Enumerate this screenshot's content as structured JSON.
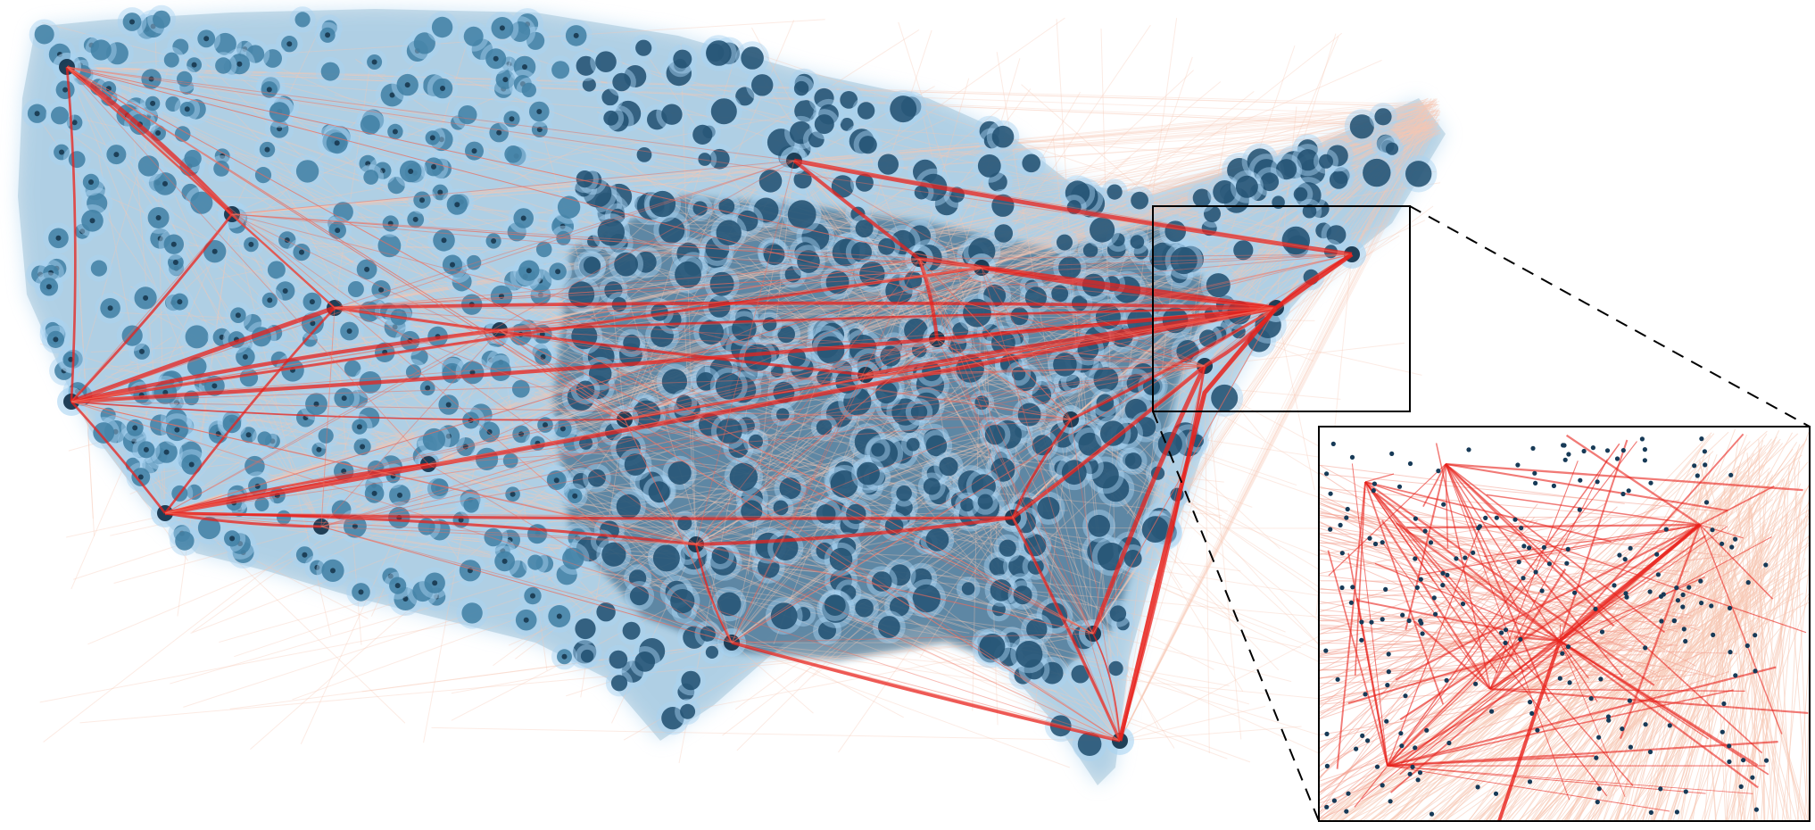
{
  "figure": {
    "kind": "network-flow-map",
    "region": "contiguous-united-states",
    "node_layer": "airport-density-blobs",
    "edge_layer": "bundled-flight-routes",
    "inset": "zoomed-northeast-detail"
  },
  "colors": {
    "background": "#ffffff",
    "node_glow": "#a9d3f2",
    "node_mid": "#3f7fa3",
    "node_core": "#1f4e6f",
    "node_dark": "#17374f",
    "edge_faint": "#f7c7b3",
    "edge_mid": "#ee6a5b",
    "edge_strong": "#e8221c",
    "inset_dot": "#173a57",
    "frame": "#000000"
  }
}
